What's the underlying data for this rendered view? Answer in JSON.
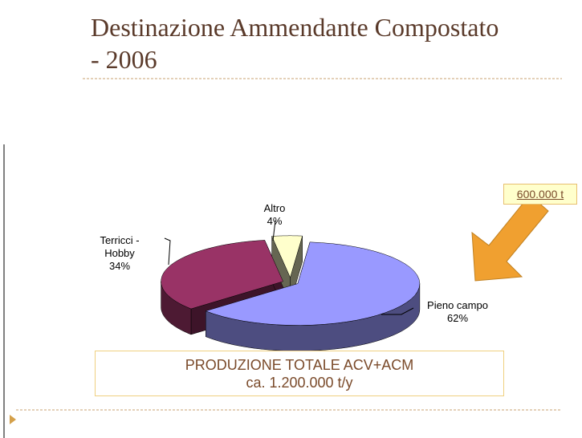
{
  "title": "Destinazione Ammendante Compostato - 2006",
  "chart_data": {
    "type": "pie",
    "categories": [
      "Pieno campo",
      "Terricci - Hobby",
      "Altro"
    ],
    "values": [
      62,
      34,
      4
    ],
    "value_labels": [
      "62%",
      "34%",
      "4%"
    ],
    "colors": [
      "#9999ff",
      "#993366",
      "#ffffcc"
    ]
  },
  "callout": "600.000 t",
  "total_box": {
    "line1": "PRODUZIONE TOTALE ACV+ACM",
    "line2": "ca. 1.200.000 t/y"
  }
}
